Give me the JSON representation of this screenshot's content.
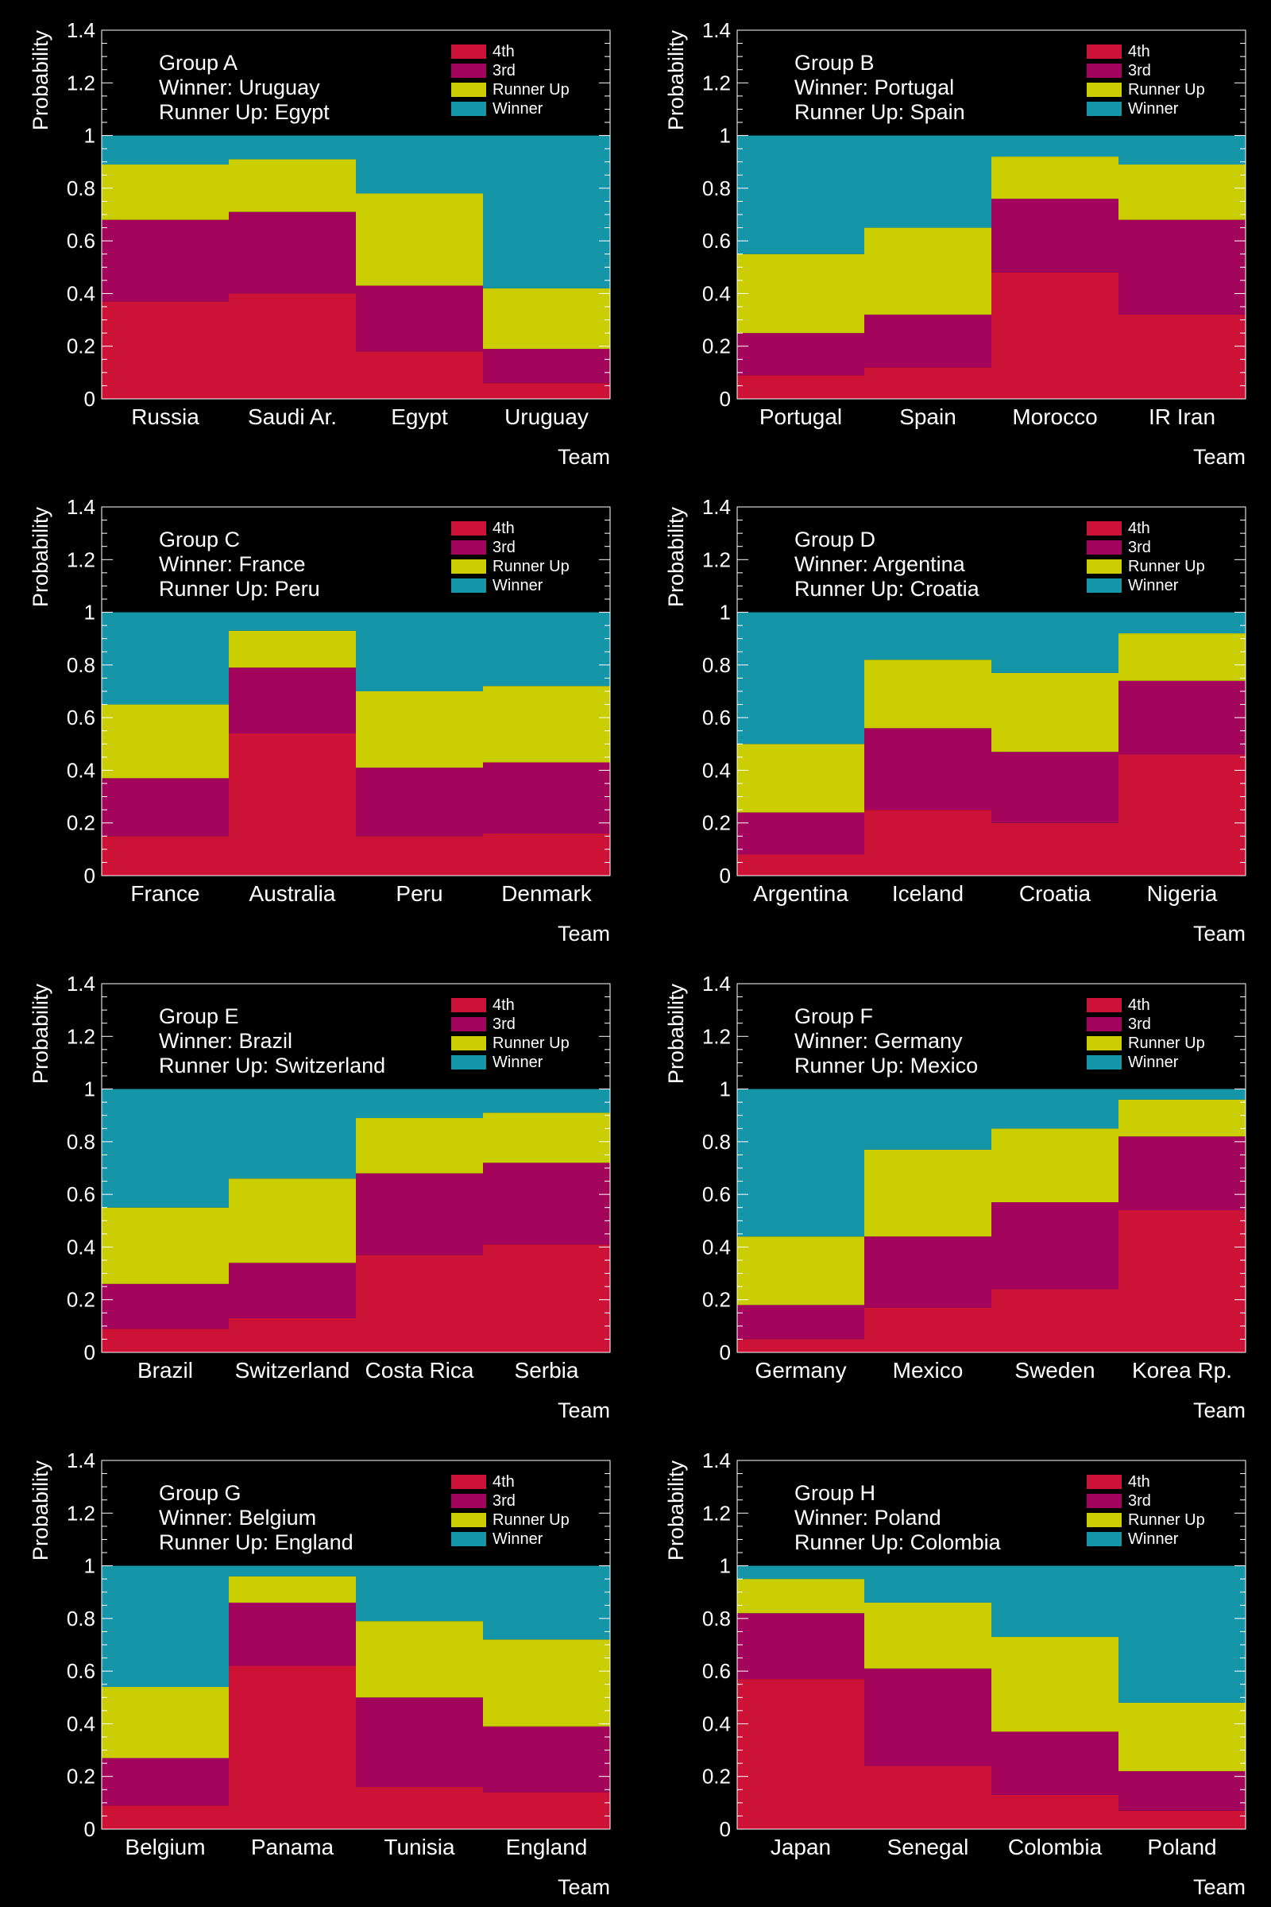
{
  "colors": {
    "fourth": "#cc1236",
    "third": "#a4055c",
    "runner_up": "#cace00",
    "winner": "#1495a8",
    "axis": "#ffffff",
    "background": "#000000"
  },
  "legend_labels": {
    "fourth": "4th",
    "third": "3rd",
    "runner_up": "Runner Up",
    "winner": "Winner"
  },
  "chart_data": [
    {
      "type": "bar",
      "stacked": true,
      "title": "Group A",
      "winner_label": "Winner: Uruguay",
      "runner_up_label": "Runner Up: Egypt",
      "xlabel": "Team",
      "ylabel": "Probability",
      "ylim": [
        0,
        1.4
      ],
      "legend": "top-right",
      "yticks": [
        "0",
        "0.2",
        "0.4",
        "0.6",
        "0.8",
        "1",
        "1.2",
        "1.4"
      ],
      "categories": [
        "Russia",
        "Saudi Ar.",
        "Egypt",
        "Uruguay"
      ],
      "series": [
        {
          "name": "4th",
          "values": [
            0.37,
            0.4,
            0.18,
            0.06
          ]
        },
        {
          "name": "3rd",
          "values": [
            0.31,
            0.31,
            0.25,
            0.13
          ]
        },
        {
          "name": "Runner Up",
          "values": [
            0.21,
            0.2,
            0.35,
            0.23
          ]
        },
        {
          "name": "Winner",
          "values": [
            0.11,
            0.09,
            0.22,
            0.58
          ]
        }
      ]
    },
    {
      "type": "bar",
      "stacked": true,
      "title": "Group B",
      "winner_label": "Winner: Portugal",
      "runner_up_label": "Runner Up: Spain",
      "xlabel": "Team",
      "ylabel": "Probability",
      "ylim": [
        0,
        1.4
      ],
      "legend": "top-right",
      "yticks": [
        "0",
        "0.2",
        "0.4",
        "0.6",
        "0.8",
        "1",
        "1.2",
        "1.4"
      ],
      "categories": [
        "Portugal",
        "Spain",
        "Morocco",
        "IR Iran"
      ],
      "series": [
        {
          "name": "4th",
          "values": [
            0.09,
            0.12,
            0.48,
            0.32
          ]
        },
        {
          "name": "3rd",
          "values": [
            0.16,
            0.2,
            0.28,
            0.36
          ]
        },
        {
          "name": "Runner Up",
          "values": [
            0.3,
            0.33,
            0.16,
            0.21
          ]
        },
        {
          "name": "Winner",
          "values": [
            0.45,
            0.35,
            0.08,
            0.11
          ]
        }
      ]
    },
    {
      "type": "bar",
      "stacked": true,
      "title": "Group C",
      "winner_label": "Winner: France",
      "runner_up_label": "Runner Up: Peru",
      "xlabel": "Team",
      "ylabel": "Probability",
      "ylim": [
        0,
        1.4
      ],
      "legend": "top-right",
      "yticks": [
        "0",
        "0.2",
        "0.4",
        "0.6",
        "0.8",
        "1",
        "1.2",
        "1.4"
      ],
      "categories": [
        "France",
        "Australia",
        "Peru",
        "Denmark"
      ],
      "series": [
        {
          "name": "4th",
          "values": [
            0.15,
            0.54,
            0.15,
            0.16
          ]
        },
        {
          "name": "3rd",
          "values": [
            0.22,
            0.25,
            0.26,
            0.27
          ]
        },
        {
          "name": "Runner Up",
          "values": [
            0.28,
            0.14,
            0.29,
            0.29
          ]
        },
        {
          "name": "Winner",
          "values": [
            0.35,
            0.07,
            0.3,
            0.28
          ]
        }
      ]
    },
    {
      "type": "bar",
      "stacked": true,
      "title": "Group D",
      "winner_label": "Winner: Argentina",
      "runner_up_label": "Runner Up: Croatia",
      "xlabel": "Team",
      "ylabel": "Probability",
      "ylim": [
        0,
        1.4
      ],
      "legend": "top-right",
      "yticks": [
        "0",
        "0.2",
        "0.4",
        "0.6",
        "0.8",
        "1",
        "1.2",
        "1.4"
      ],
      "categories": [
        "Argentina",
        "Iceland",
        "Croatia",
        "Nigeria"
      ],
      "series": [
        {
          "name": "4th",
          "values": [
            0.08,
            0.25,
            0.2,
            0.46
          ]
        },
        {
          "name": "3rd",
          "values": [
            0.16,
            0.31,
            0.27,
            0.28
          ]
        },
        {
          "name": "Runner Up",
          "values": [
            0.26,
            0.26,
            0.3,
            0.18
          ]
        },
        {
          "name": "Winner",
          "values": [
            0.5,
            0.18,
            0.23,
            0.08
          ]
        }
      ]
    },
    {
      "type": "bar",
      "stacked": true,
      "title": "Group E",
      "winner_label": "Winner: Brazil",
      "runner_up_label": "Runner Up: Switzerland",
      "xlabel": "Team",
      "ylabel": "Probability",
      "ylim": [
        0,
        1.4
      ],
      "legend": "top-right",
      "yticks": [
        "0",
        "0.2",
        "0.4",
        "0.6",
        "0.8",
        "1",
        "1.2",
        "1.4"
      ],
      "categories": [
        "Brazil",
        "Switzerland",
        "Costa Rica",
        "Serbia"
      ],
      "series": [
        {
          "name": "4th",
          "values": [
            0.09,
            0.13,
            0.37,
            0.41
          ]
        },
        {
          "name": "3rd",
          "values": [
            0.17,
            0.21,
            0.31,
            0.31
          ]
        },
        {
          "name": "Runner Up",
          "values": [
            0.29,
            0.32,
            0.21,
            0.19
          ]
        },
        {
          "name": "Winner",
          "values": [
            0.45,
            0.34,
            0.11,
            0.09
          ]
        }
      ]
    },
    {
      "type": "bar",
      "stacked": true,
      "title": "Group F",
      "winner_label": "Winner: Germany",
      "runner_up_label": "Runner Up: Mexico",
      "xlabel": "Team",
      "ylabel": "Probability",
      "ylim": [
        0,
        1.4
      ],
      "legend": "top-right",
      "yticks": [
        "0",
        "0.2",
        "0.4",
        "0.6",
        "0.8",
        "1",
        "1.2",
        "1.4"
      ],
      "categories": [
        "Germany",
        "Mexico",
        "Sweden",
        "Korea Rp."
      ],
      "series": [
        {
          "name": "4th",
          "values": [
            0.05,
            0.17,
            0.24,
            0.54
          ]
        },
        {
          "name": "3rd",
          "values": [
            0.13,
            0.27,
            0.33,
            0.28
          ]
        },
        {
          "name": "Runner Up",
          "values": [
            0.26,
            0.33,
            0.28,
            0.14
          ]
        },
        {
          "name": "Winner",
          "values": [
            0.56,
            0.23,
            0.15,
            0.04
          ]
        }
      ]
    },
    {
      "type": "bar",
      "stacked": true,
      "title": "Group G",
      "winner_label": "Winner: Belgium",
      "runner_up_label": "Runner Up: England",
      "xlabel": "Team",
      "ylabel": "Probability",
      "ylim": [
        0,
        1.4
      ],
      "legend": "top-right",
      "yticks": [
        "0",
        "0.2",
        "0.4",
        "0.6",
        "0.8",
        "1",
        "1.2",
        "1.4"
      ],
      "categories": [
        "Belgium",
        "Panama",
        "Tunisia",
        "England"
      ],
      "series": [
        {
          "name": "4th",
          "values": [
            0.09,
            0.62,
            0.16,
            0.14
          ]
        },
        {
          "name": "3rd",
          "values": [
            0.18,
            0.24,
            0.34,
            0.25
          ]
        },
        {
          "name": "Runner Up",
          "values": [
            0.27,
            0.1,
            0.29,
            0.33
          ]
        },
        {
          "name": "Winner",
          "values": [
            0.46,
            0.04,
            0.21,
            0.28
          ]
        }
      ]
    },
    {
      "type": "bar",
      "stacked": true,
      "title": "Group H",
      "winner_label": "Winner: Poland",
      "runner_up_label": "Runner Up: Colombia",
      "xlabel": "Team",
      "ylabel": "Probability",
      "ylim": [
        0,
        1.4
      ],
      "legend": "top-right",
      "yticks": [
        "0",
        "0.2",
        "0.4",
        "0.6",
        "0.8",
        "1",
        "1.2",
        "1.4"
      ],
      "categories": [
        "Japan",
        "Senegal",
        "Colombia",
        "Poland"
      ],
      "series": [
        {
          "name": "4th",
          "values": [
            0.57,
            0.24,
            0.13,
            0.07
          ]
        },
        {
          "name": "3rd",
          "values": [
            0.25,
            0.37,
            0.24,
            0.15
          ]
        },
        {
          "name": "Runner Up",
          "values": [
            0.13,
            0.25,
            0.36,
            0.26
          ]
        },
        {
          "name": "Winner",
          "values": [
            0.05,
            0.14,
            0.27,
            0.52
          ]
        }
      ]
    }
  ]
}
